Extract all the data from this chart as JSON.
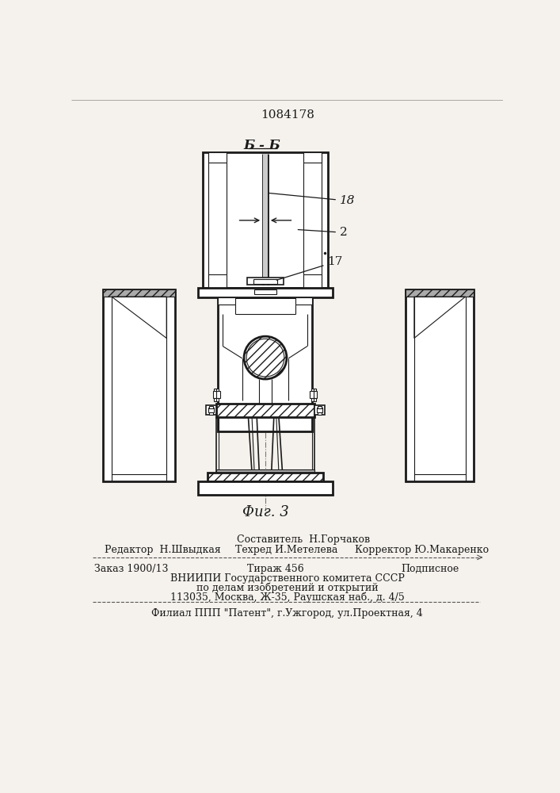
{
  "patent_number": "1084178",
  "section_label": "Б - Б",
  "fig_label": "Фиг. 3",
  "bg_color": "#f5f2ed",
  "line_color": "#1a1a1a",
  "footer": {
    "составитель": "Составитель  Н.Горчаков",
    "редактор": "Редактор  Н.Швыдкая",
    "техред": "Техред И.Метелева",
    "корректор": "Корректор Ю.Макаренко",
    "заказ": "Заказ 1900/13",
    "тираж": "Тираж 456",
    "подписное": "Подписное",
    "вниипи1": "ВНИИПИ Государственного комитета СССР",
    "вниипи2": "по делам изобретений и открытий",
    "вниипи3": "113035, Москва, Ж-35, Раушская наб., д. 4/5",
    "филиал": "Филиал ППП \"Патент\", г.Ужгород, ул.Проектная, 4"
  }
}
